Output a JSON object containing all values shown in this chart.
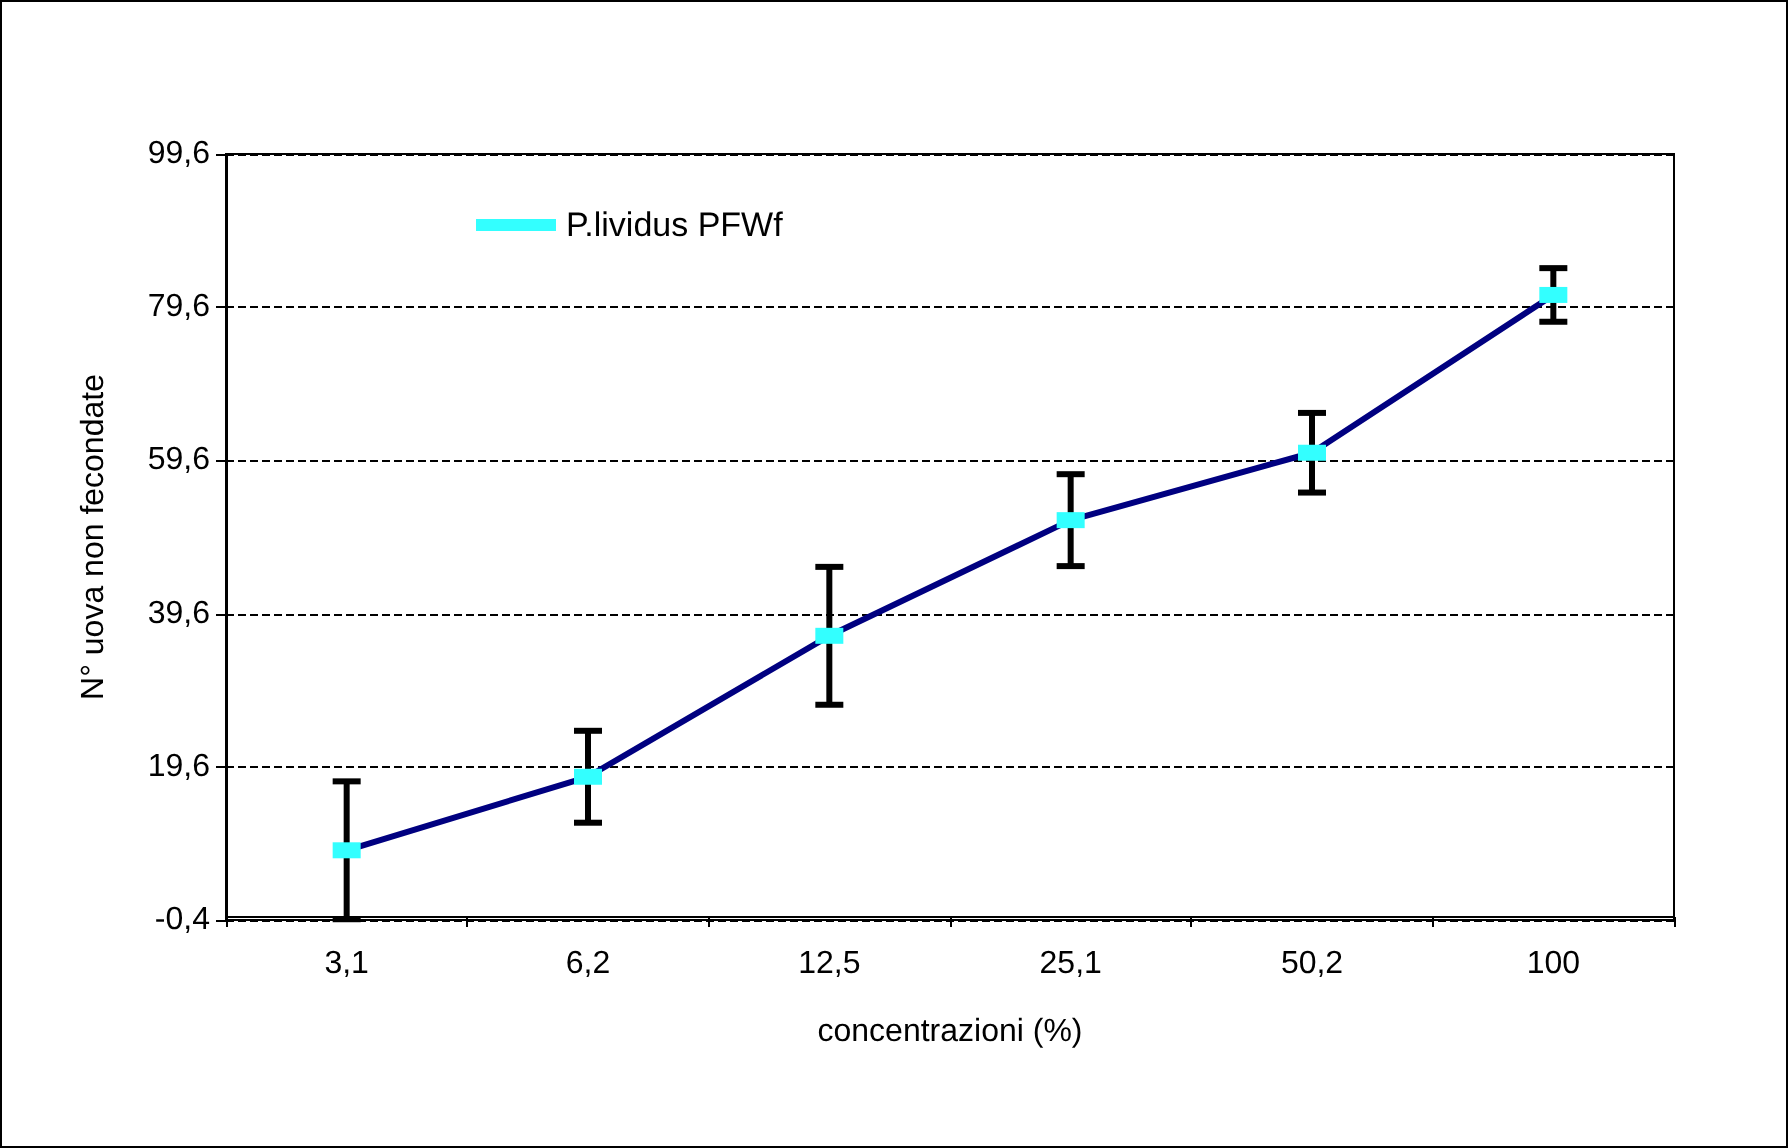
{
  "chart_data": {
    "type": "line",
    "xlabel": "concentrazioni (%)",
    "ylabel": "N° uova non fecondate",
    "categories": [
      "3,1",
      "6,2",
      "12,5",
      "25,1",
      "50,2",
      "100"
    ],
    "series": [
      {
        "name": "P.lividus PFWf",
        "color": "#000080",
        "values": [
          8.7,
          18.3,
          36.7,
          51.8,
          60.6,
          81.2
        ],
        "colors": [
          "#33ffff",
          "#33ffff",
          "#33ffff",
          "#33ffff",
          "#33ffff",
          "#33ffff"
        ],
        "errors": [
          9,
          6,
          9,
          6,
          5.2,
          3.5
        ]
      }
    ],
    "ylim": [
      -0.4,
      99.6
    ],
    "yticks": [
      {
        "value": -0.4,
        "label": "-0,4"
      },
      {
        "value": 19.6,
        "label": "19,6"
      },
      {
        "value": 39.6,
        "label": "39,6"
      },
      {
        "value": 59.6,
        "label": "59,6"
      },
      {
        "value": 79.6,
        "label": "79,6"
      },
      {
        "value": 99.6,
        "label": "99,6"
      }
    ],
    "grid": "y",
    "marker": "square",
    "legend": "top left",
    "line_style": "solid"
  }
}
